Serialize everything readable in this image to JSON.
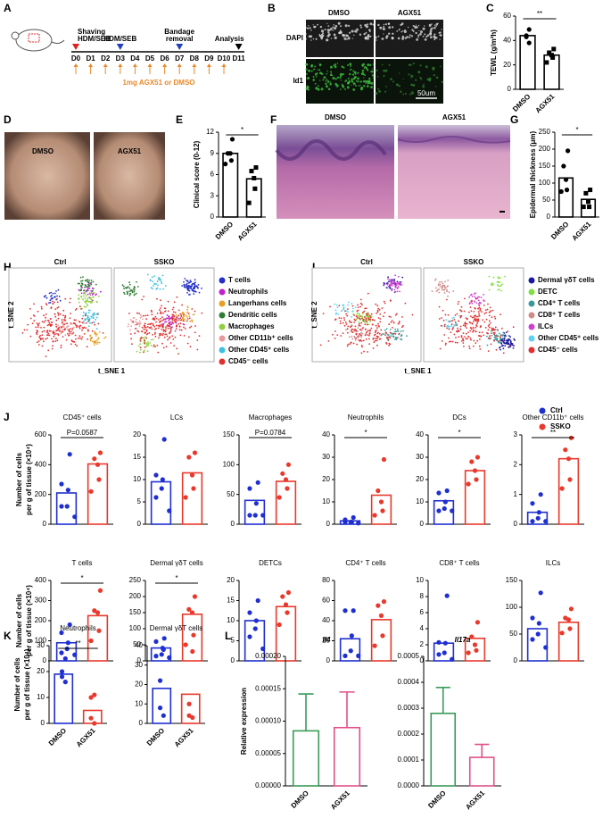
{
  "panel_labels": [
    "A",
    "B",
    "C",
    "D",
    "E",
    "F",
    "G",
    "H",
    "I",
    "J",
    "K",
    "L"
  ],
  "timeline": {
    "events": [
      [
        "Shaving",
        "HDM/SEB"
      ],
      [
        "HDM/SEB"
      ],
      [
        "Bandage",
        "removal"
      ],
      [
        "Analysis"
      ]
    ],
    "days": [
      "D0",
      "D1",
      "D2",
      "D3",
      "D4",
      "D5",
      "D6",
      "D7",
      "D8",
      "D9",
      "D10",
      "D11"
    ],
    "treatment": "1mg AGX51 or DMSO"
  },
  "staining": {
    "columns": [
      "DMSO",
      "AGX51"
    ],
    "rows": [
      "DAPI",
      "Id1"
    ],
    "scale_bar": "50um"
  },
  "photos": {
    "labels": [
      "DMSO",
      "AGX51"
    ]
  },
  "histology": {
    "labels": [
      "DMSO",
      "AGX51"
    ]
  },
  "tsne": [
    {
      "groups": [
        "Ctrl",
        "SSKO"
      ],
      "xlabel": "t_SNE 1",
      "ylabel": "t_SNE 2",
      "legend": [
        {
          "name": "T cells",
          "color": "#2430c8"
        },
        {
          "name": "Neutrophils",
          "color": "#c020d0"
        },
        {
          "name": "Langerhans cells",
          "color": "#e8a020"
        },
        {
          "name": "Dendritic cells",
          "color": "#2e7d32"
        },
        {
          "name": "Macrophages",
          "color": "#90d040"
        },
        {
          "name": "Other CD11b⁺ cells",
          "color": "#e89a9a"
        },
        {
          "name": "Other CD45⁺ cells",
          "color": "#40c0e0"
        },
        {
          "name": "CD45⁻ cells",
          "color": "#e03030"
        }
      ]
    },
    {
      "groups": [
        "Ctrl",
        "SSKO"
      ],
      "xlabel": "t_SNE 1",
      "ylabel": "t_SNE 2",
      "legend": [
        {
          "name": "Dermal γδT cells",
          "color": "#1a1aa0"
        },
        {
          "name": "DETC",
          "color": "#80e040"
        },
        {
          "name": "CD4⁺ T cells",
          "color": "#3a9a9a"
        },
        {
          "name": "CD8⁺ T cells",
          "color": "#d08a8a"
        },
        {
          "name": "ILCs",
          "color": "#d040d0"
        },
        {
          "name": "Other CD45⁺ cells",
          "color": "#60d0f0"
        },
        {
          "name": "CD45⁻ cells",
          "color": "#e03030"
        }
      ]
    }
  ],
  "group_legend": [
    {
      "name": "Ctrl",
      "color": "#1f2fd0"
    },
    {
      "name": "SSKO",
      "color": "#e8392c"
    }
  ],
  "chart_data": [
    {
      "type": "bar",
      "ylabel": [
        "TEWL (g/m²h)"
      ],
      "categories": [
        "DMSO",
        "AGX51"
      ],
      "values": [
        44,
        28
      ],
      "points": [
        [
          49,
          44,
          43,
          38
        ],
        [
          33,
          30,
          28,
          26,
          22
        ]
      ],
      "markers": [
        "circle",
        "square"
      ],
      "colors": [
        "#000000",
        "#000000"
      ],
      "ylim": [
        0,
        60
      ],
      "yticks": [
        0,
        20,
        40,
        60
      ],
      "annotation": "**"
    },
    {
      "type": "bar",
      "ylabel": [
        "Clinical score (0-12)"
      ],
      "categories": [
        "DMSO",
        "AGX51"
      ],
      "values": [
        9,
        5.4
      ],
      "points": [
        [
          11,
          9,
          9,
          8,
          7.5
        ],
        [
          7,
          6.5,
          5.5,
          4,
          2
        ]
      ],
      "markers": [
        "circle",
        "square"
      ],
      "colors": [
        "#000000",
        "#000000"
      ],
      "ylim": [
        0,
        12
      ],
      "yticks": [
        0,
        3,
        6,
        9,
        12
      ],
      "annotation": "*"
    },
    {
      "type": "bar",
      "ylabel": [
        "Epidermal thickness (μm)"
      ],
      "categories": [
        "DMSO",
        "AGX51"
      ],
      "values": [
        115,
        52
      ],
      "points": [
        [
          195,
          150,
          110,
          80,
          75
        ],
        [
          80,
          70,
          45,
          30,
          30
        ]
      ],
      "markers": [
        "circle",
        "square"
      ],
      "colors": [
        "#000000",
        "#000000"
      ],
      "ylim": [
        0,
        250
      ],
      "yticks": [
        0,
        50,
        100,
        150,
        200,
        250
      ],
      "annotation": "*"
    },
    {
      "type": "bar",
      "title": "CD45⁺ cells",
      "ylabel": [
        "Number of cells",
        "per g of tissue (×10⁴)"
      ],
      "categories": [
        null,
        null
      ],
      "values": [
        210,
        405
      ],
      "points": [
        [
          470,
          270,
          230,
          120,
          120,
          50
        ],
        [
          480,
          440,
          400,
          300,
          220
        ]
      ],
      "colors": [
        "#1f2fd0",
        "#e8392c"
      ],
      "ylim": [
        0,
        600
      ],
      "yticks": [
        0,
        200,
        400,
        600
      ],
      "p_value": "P=0.0587"
    },
    {
      "type": "bar",
      "title": "LCs",
      "categories": [
        null,
        null
      ],
      "values": [
        9.5,
        11.5
      ],
      "points": [
        [
          19,
          11,
          10,
          8,
          6,
          3
        ],
        [
          16,
          15,
          11,
          8,
          6
        ]
      ],
      "colors": [
        "#1f2fd0",
        "#e8392c"
      ],
      "ylim": [
        0,
        20
      ],
      "yticks": [
        0,
        5,
        10,
        15,
        20
      ]
    },
    {
      "type": "bar",
      "title": "Macrophages",
      "categories": [
        null,
        null
      ],
      "values": [
        40,
        72
      ],
      "points": [
        [
          70,
          60,
          35,
          15,
          15,
          15
        ],
        [
          100,
          85,
          75,
          60,
          45
        ]
      ],
      "colors": [
        "#1f2fd0",
        "#e8392c"
      ],
      "ylim": [
        0,
        150
      ],
      "yticks": [
        0,
        50,
        100,
        150
      ],
      "p_value": "P=0.0784"
    },
    {
      "type": "bar",
      "title": "Neutrophils",
      "categories": [
        null,
        null
      ],
      "values": [
        1.5,
        13
      ],
      "points": [
        [
          3,
          2,
          1,
          1,
          1,
          0.5
        ],
        [
          29,
          15,
          10,
          6,
          4
        ]
      ],
      "colors": [
        "#1f2fd0",
        "#e8392c"
      ],
      "ylim": [
        0,
        40
      ],
      "yticks": [
        0,
        10,
        20,
        30,
        40
      ],
      "annotation": "*"
    },
    {
      "type": "bar",
      "title": "DCs",
      "categories": [
        null,
        null
      ],
      "values": [
        10.5,
        24
      ],
      "points": [
        [
          15,
          14,
          10,
          7,
          6,
          6
        ],
        [
          30,
          28,
          24,
          20,
          18
        ]
      ],
      "colors": [
        "#1f2fd0",
        "#e8392c"
      ],
      "ylim": [
        0,
        40
      ],
      "yticks": [
        0,
        10,
        20,
        30,
        40
      ],
      "annotation": "*"
    },
    {
      "type": "bar",
      "title": "Other CD11b⁺ cells",
      "categories": [
        null,
        null
      ],
      "values": [
        0.4,
        2.2
      ],
      "points": [
        [
          1,
          0.7,
          0.4,
          0.2,
          0.1,
          0.1
        ],
        [
          2.9,
          2.5,
          2.2,
          1.5,
          1.2
        ]
      ],
      "colors": [
        "#1f2fd0",
        "#e8392c"
      ],
      "ylim": [
        0,
        3
      ],
      "yticks": [
        0,
        1,
        2,
        3
      ],
      "annotation": "**"
    },
    {
      "type": "bar",
      "title": "T cells",
      "ylabel": [
        "Number of cells",
        "per g of tissue (×10⁴)"
      ],
      "categories": [
        null,
        null
      ],
      "values": [
        90,
        225
      ],
      "points": [
        [
          180,
          140,
          90,
          60,
          40,
          30
        ],
        [
          350,
          250,
          240,
          150,
          100
        ]
      ],
      "colors": [
        "#1f2fd0",
        "#e8392c"
      ],
      "ylim": [
        0,
        400
      ],
      "yticks": [
        0,
        100,
        200,
        300,
        400
      ],
      "annotation": "*"
    },
    {
      "type": "bar",
      "title": "Dermal γδT cells",
      "categories": [
        null,
        null
      ],
      "values": [
        40,
        145
      ],
      "points": [
        [
          70,
          60,
          40,
          20,
          15,
          10
        ],
        [
          200,
          160,
          150,
          80,
          50
        ]
      ],
      "colors": [
        "#1f2fd0",
        "#e8392c"
      ],
      "ylim": [
        0,
        250
      ],
      "yticks": [
        0,
        50,
        100,
        150,
        200,
        250
      ],
      "annotation": "*"
    },
    {
      "type": "bar",
      "title": "DETCs",
      "categories": [
        null,
        null
      ],
      "values": [
        10,
        13.5
      ],
      "points": [
        [
          15,
          12,
          10,
          8,
          6,
          3
        ],
        [
          17,
          16,
          14,
          12,
          9
        ]
      ],
      "colors": [
        "#1f2fd0",
        "#e8392c"
      ],
      "ylim": [
        0,
        20
      ],
      "yticks": [
        0,
        5,
        10,
        15,
        20
      ]
    },
    {
      "type": "bar",
      "title": "CD4⁺ T cells",
      "categories": [
        null,
        null
      ],
      "values": [
        22,
        41
      ],
      "points": [
        [
          50,
          50,
          25,
          10,
          5,
          5
        ],
        [
          59,
          55,
          45,
          25,
          15
        ]
      ],
      "colors": [
        "#1f2fd0",
        "#e8392c"
      ],
      "ylim": [
        0,
        80
      ],
      "yticks": [
        0,
        20,
        40,
        60,
        80
      ]
    },
    {
      "type": "bar",
      "title": "CD8⁺ T cells",
      "categories": [
        null,
        null
      ],
      "values": [
        2.2,
        2.8
      ],
      "points": [
        [
          8.1,
          2.3,
          2.2,
          1,
          0.8,
          0.2
        ],
        [
          4.8,
          3,
          2,
          1.3,
          1
        ]
      ],
      "colors": [
        "#1f2fd0",
        "#e8392c"
      ],
      "ylim": [
        0,
        10
      ],
      "yticks": [
        0,
        2,
        4,
        6,
        8,
        10
      ]
    },
    {
      "type": "bar",
      "title": "ILCs",
      "categories": [
        null,
        null
      ],
      "values": [
        60,
        72
      ],
      "points": [
        [
          127,
          80,
          70,
          50,
          40,
          25
        ],
        [
          97,
          80,
          77,
          60,
          52
        ]
      ],
      "colors": [
        "#1f2fd0",
        "#e8392c"
      ],
      "ylim": [
        0,
        150
      ],
      "yticks": [
        0,
        50,
        100,
        150
      ]
    },
    {
      "type": "bar",
      "title": "Neutrophils",
      "ylabel": [
        "Number of cells",
        "per g of tissue (×10⁴)"
      ],
      "categories": [
        "DMSO",
        "AGX51"
      ],
      "values": [
        19,
        5
      ],
      "points": [
        [
          25,
          20,
          18,
          16
        ],
        [
          11,
          10,
          2,
          0
        ]
      ],
      "colors": [
        "#1f2fd0",
        "#e8392c"
      ],
      "ylim": [
        0,
        30
      ],
      "yticks": [
        0,
        10,
        20,
        30
      ],
      "annotation": "**"
    },
    {
      "type": "bar",
      "title": "Dermal γδT cells",
      "categories": [
        "DMSO",
        "AGX51"
      ],
      "values": [
        18,
        15
      ],
      "points": [
        [
          38,
          22,
          8,
          4
        ],
        [
          37,
          10,
          4,
          3
        ]
      ],
      "colors": [
        "#1f2fd0",
        "#e8392c"
      ],
      "ylim": [
        0,
        40
      ],
      "yticks": [
        0,
        10,
        20,
        30,
        40
      ]
    },
    {
      "type": "bar",
      "title": "Il4",
      "italic_title": true,
      "ylabel": [
        "Relative expression"
      ],
      "categories": [
        "DMSO",
        "AGX51"
      ],
      "values": [
        8.5e-05,
        9e-05
      ],
      "errors": [
        5.7e-05,
        5.5e-05
      ],
      "colors": [
        "#3a9a5a",
        "#e0508a"
      ],
      "ylim": [
        0,
        0.0002
      ],
      "yticks": [
        {
          "value": 0,
          "label": "0.00000"
        },
        5e-05,
        {
          "value": 0.0001,
          "label": "0.00010"
        },
        0.00015,
        {
          "value": 0.0002,
          "label": "0.00020"
        }
      ]
    },
    {
      "type": "bar",
      "title": "Il17a",
      "italic_title": true,
      "categories": [
        "DMSO",
        "AGX51"
      ],
      "values": [
        0.00028,
        0.00011
      ],
      "errors": [
        0.0001,
        5e-05
      ],
      "colors": [
        "#3a9a5a",
        "#e0508a"
      ],
      "ylim": [
        0,
        0.0005
      ],
      "yticks": [
        {
          "value": 0,
          "label": "0.0000"
        },
        0.0001,
        0.0002,
        0.0003,
        0.0004,
        0.0005
      ]
    }
  ]
}
